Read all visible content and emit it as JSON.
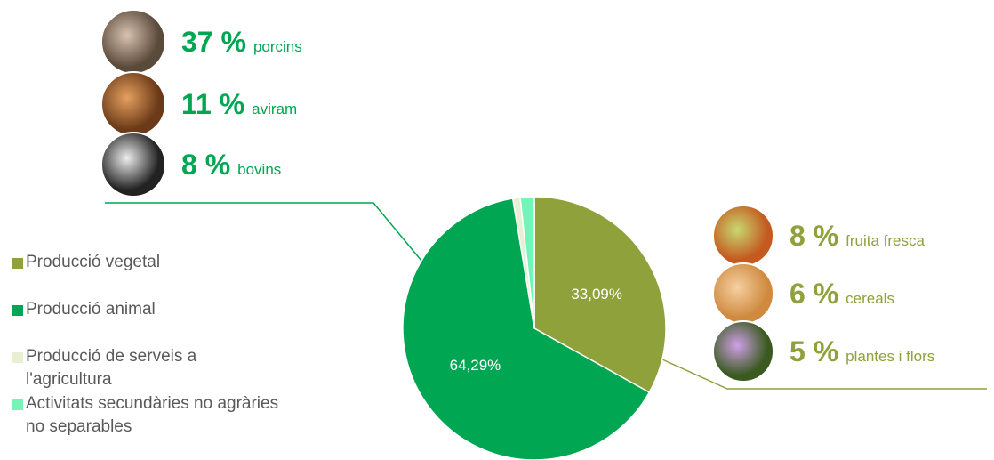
{
  "chart_data": {
    "type": "pie",
    "categories": [
      "Producció vegetal",
      "Producció animal",
      "Producció de serveis a l'agricultura",
      "Activitats secundàries no agràries no separables"
    ],
    "values": [
      33.09,
      64.29,
      0.9,
      1.72
    ],
    "value_labels": [
      "33,09%",
      "64,29%",
      null,
      null
    ],
    "colors": [
      "#8fa13b",
      "#00a651",
      "#e8f0d2",
      "#73f5b8"
    ],
    "legend": "left",
    "breakdowns": [
      {
        "values": [
          37,
          11,
          8
        ],
        "value_labels": [
          "37 %",
          "11 %",
          "8 %"
        ],
        "names": [
          "porcins",
          "aviram",
          "bovins"
        ],
        "color": "#00a651"
      },
      {
        "values": [
          8,
          6,
          5
        ],
        "value_labels": [
          "8 %",
          "6 %",
          "5 %"
        ],
        "names": [
          "fruita fresca",
          "cereals",
          "plantes i flors"
        ],
        "color": "#8fa13b"
      }
    ]
  }
}
